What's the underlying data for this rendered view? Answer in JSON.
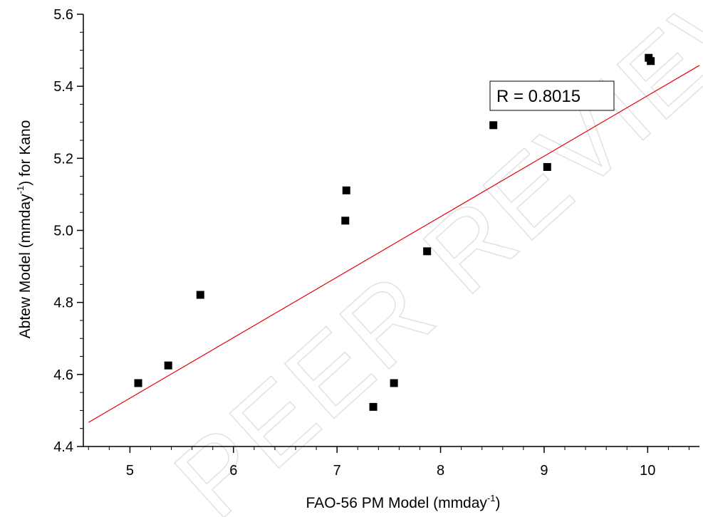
{
  "chart_data": {
    "type": "scatter",
    "xlabel": {
      "main": "FAO-56 PM Model (mmday",
      "sup": "-1",
      "tail": ")"
    },
    "ylabel": {
      "main": "Abtew Model (mmday",
      "sup": "-1",
      "tail": ") for Kano"
    },
    "xlim": [
      4.55,
      10.5
    ],
    "ylim": [
      4.4,
      5.6
    ],
    "xticks": [
      "5",
      "6",
      "7",
      "8",
      "9",
      "10"
    ],
    "xtick_values": [
      5,
      6,
      7,
      8,
      9,
      10
    ],
    "yticks": [
      "4.4",
      "4.6",
      "4.8",
      "5.0",
      "5.2",
      "5.4",
      "5.6"
    ],
    "ytick_values": [
      4.4,
      4.6,
      4.8,
      5.0,
      5.2,
      5.4,
      5.6
    ],
    "points": [
      {
        "x": 5.08,
        "y": 4.576
      },
      {
        "x": 5.37,
        "y": 4.625
      },
      {
        "x": 5.68,
        "y": 4.821
      },
      {
        "x": 7.08,
        "y": 5.027
      },
      {
        "x": 7.09,
        "y": 5.111
      },
      {
        "x": 7.35,
        "y": 4.51
      },
      {
        "x": 7.55,
        "y": 4.576
      },
      {
        "x": 7.87,
        "y": 4.942
      },
      {
        "x": 8.51,
        "y": 5.292
      },
      {
        "x": 9.03,
        "y": 5.176
      },
      {
        "x": 10.01,
        "y": 5.479
      },
      {
        "x": 10.03,
        "y": 5.47
      }
    ],
    "fit_line": {
      "x": [
        4.6,
        10.5
      ],
      "y": [
        4.467,
        5.458
      ],
      "color": "#e8000b"
    },
    "annotation": "R = 0.8015",
    "watermark": "PEER REVIEW",
    "grid": false,
    "legend": "none",
    "marker_color": "#000000"
  }
}
